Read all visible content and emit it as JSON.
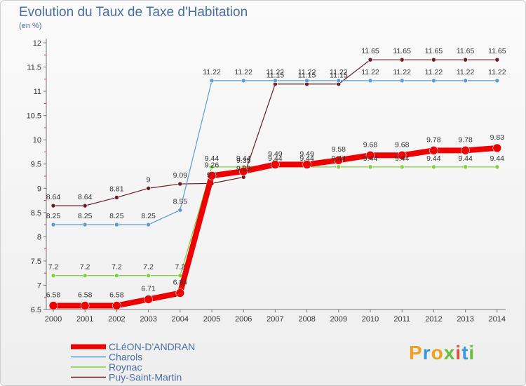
{
  "chart_data": {
    "type": "line",
    "title": "Evolution du Taux de Taxe d'Habitation",
    "subtitle": "(en %)",
    "x": [
      "2000",
      "2001",
      "2002",
      "2003",
      "2004",
      "2005",
      "2006",
      "2007",
      "2008",
      "2009",
      "2010",
      "2011",
      "2012",
      "2013",
      "2014"
    ],
    "yticks": [
      "6.5",
      "7",
      "7.5",
      "8",
      "8.5",
      "9",
      "9.5",
      "10",
      "10.5",
      "11",
      "11.5",
      "12"
    ],
    "ylim": [
      6.5,
      12
    ],
    "grid": false,
    "legend": "bottom-left",
    "series": [
      {
        "name": "Puy-Saint-Martin",
        "color": "#6b1c23",
        "width": 1.2,
        "r": 3,
        "values": [
          8.64,
          8.64,
          8.81,
          9,
          9.09,
          9.1,
          9.23,
          11.15,
          11.15,
          11.15,
          11.65,
          11.65,
          11.65,
          11.65,
          11.65
        ],
        "labels": [
          "8.64",
          "8.64",
          "8.81",
          "9",
          "9.09",
          "9.1",
          "9.23",
          "11.15",
          "11.15",
          "11.15",
          "11.65",
          "11.65",
          "11.65",
          "11.65",
          "11.65"
        ]
      },
      {
        "name": "Charols",
        "color": "#5b9bd5",
        "width": 1.2,
        "r": 3,
        "values": [
          8.25,
          8.25,
          8.25,
          8.25,
          8.55,
          11.22,
          11.22,
          11.22,
          11.22,
          11.22,
          11.22,
          11.22,
          11.22,
          11.22,
          11.22
        ],
        "labels": [
          "8.25",
          "8.25",
          "8.25",
          "8.25",
          "8.55",
          "11.22",
          "11.22",
          "11.22",
          "11.22",
          "11.22",
          "11.22",
          "11.22",
          "11.22",
          "11.22",
          "11.22"
        ]
      },
      {
        "name": "Roynac",
        "color": "#7fd13b",
        "width": 1.2,
        "r": 3,
        "values": [
          7.2,
          7.2,
          7.2,
          7.2,
          7.2,
          9.44,
          9.44,
          9.44,
          9.44,
          9.44,
          9.44,
          9.44,
          9.44,
          9.44,
          9.44
        ],
        "labels": [
          "7.2",
          "7.2",
          "7.2",
          "7.2",
          "7.2",
          "9.44",
          "9.44",
          "9.44",
          "9.44",
          "9.44",
          "9.44",
          "9.44",
          "9.44",
          "9.44",
          "9.44"
        ]
      },
      {
        "name": "CLéON-D'ANDRAN",
        "color": "#ee0000",
        "width": 8,
        "r": 6,
        "values": [
          6.58,
          6.58,
          6.58,
          6.71,
          6.84,
          9.26,
          9.35,
          9.49,
          9.49,
          9.58,
          9.68,
          9.68,
          9.78,
          9.78,
          9.83
        ],
        "labels": [
          "6.58",
          "6.58",
          "6.58",
          "6.71",
          "6.84",
          "9.26",
          "9.35",
          "9.49",
          "9.49",
          "9.58",
          "9.68",
          "9.68",
          "9.78",
          "9.78",
          "9.83"
        ]
      }
    ]
  },
  "logo": {
    "text": "Proxiti"
  }
}
